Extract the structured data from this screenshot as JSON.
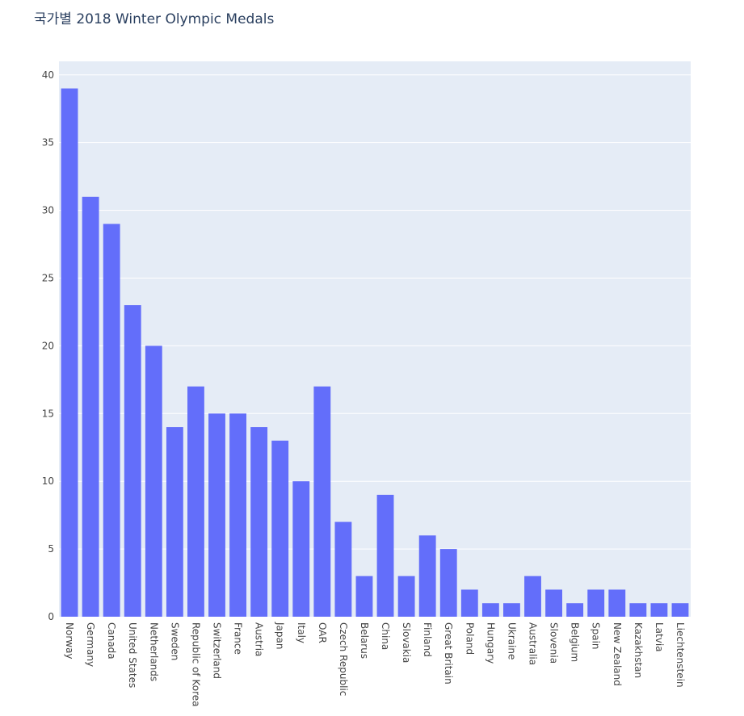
{
  "chart_data": {
    "type": "bar",
    "title": "국가별 2018 Winter Olympic Medals",
    "xlabel": "",
    "ylabel": "",
    "ylim": [
      0,
      41
    ],
    "yticks": [
      0,
      5,
      10,
      15,
      20,
      25,
      30,
      35,
      40
    ],
    "grid": true,
    "categories": [
      "Norway",
      "Germany",
      "Canada",
      "United States",
      "Netherlands",
      "Sweden",
      "Republic of Korea",
      "Switzerland",
      "France",
      "Austria",
      "Japan",
      "Italy",
      "OAR",
      "Czech Republic",
      "Belarus",
      "China",
      "Slovakia",
      "Finland",
      "Great Britain",
      "Poland",
      "Hungary",
      "Ukraine",
      "Australia",
      "Slovenia",
      "Belgium",
      "Spain",
      "New Zealand",
      "Kazakhstan",
      "Latvia",
      "Liechtenstein"
    ],
    "values": [
      39,
      31,
      29,
      23,
      20,
      14,
      17,
      15,
      15,
      14,
      13,
      10,
      17,
      7,
      3,
      9,
      3,
      6,
      5,
      2,
      1,
      1,
      3,
      2,
      1,
      2,
      2,
      1,
      1,
      1
    ],
    "colors": {
      "bar": "#636efa",
      "plot_bg": "#e5ecf6",
      "grid": "#ffffff",
      "text": "#2a3f5f",
      "tick_text": "#444444"
    }
  }
}
